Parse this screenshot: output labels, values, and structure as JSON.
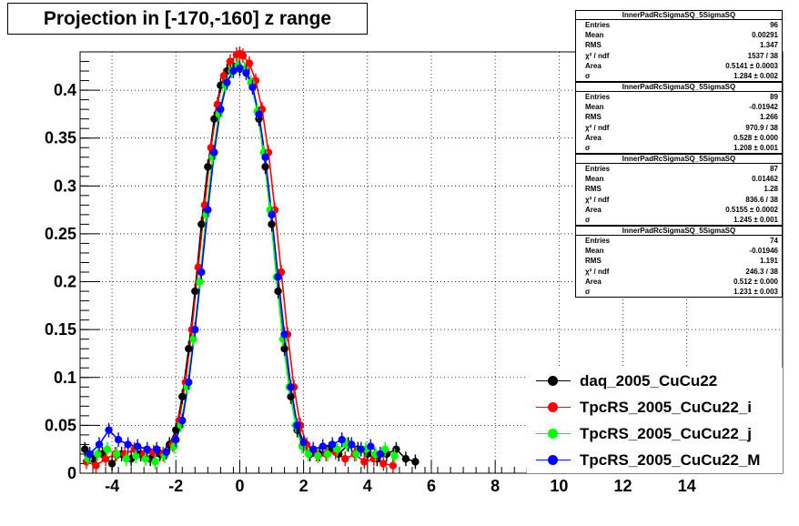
{
  "title": "Projection in [-170,-160] z range",
  "chart_data": {
    "type": "scatter",
    "xlim": [
      -5.0,
      17.0
    ],
    "ylim": [
      0,
      0.44
    ],
    "x_ticks": [
      -4,
      -2,
      0,
      2,
      4,
      6,
      8,
      10,
      12,
      14
    ],
    "y_ticks": [
      0,
      0.05,
      0.1,
      0.15,
      0.2,
      0.25,
      0.3,
      0.35,
      0.4
    ],
    "grid": true,
    "legend_position": "bottom-right",
    "series": [
      {
        "name": "daq_2005_CuCu22",
        "color": "#000000",
        "x": [
          -4.85,
          -4.6,
          -4.3,
          -4.0,
          -3.7,
          -3.4,
          -3.1,
          -2.8,
          -2.5,
          -2.2,
          -2.0,
          -1.8,
          -1.6,
          -1.4,
          -1.2,
          -1.0,
          -0.8,
          -0.6,
          -0.4,
          -0.2,
          0.0,
          0.2,
          0.4,
          0.6,
          0.8,
          1.0,
          1.2,
          1.4,
          1.6,
          1.8,
          2.0,
          2.2,
          2.5,
          2.8,
          3.1,
          3.4,
          3.7,
          4.0,
          4.3,
          4.6,
          4.9,
          5.2,
          5.5
        ],
        "y": [
          0.025,
          0.015,
          0.02,
          0.01,
          0.02,
          0.015,
          0.02,
          0.015,
          0.02,
          0.03,
          0.045,
          0.08,
          0.13,
          0.19,
          0.26,
          0.32,
          0.37,
          0.405,
          0.42,
          0.425,
          0.422,
          0.42,
          0.405,
          0.37,
          0.32,
          0.26,
          0.19,
          0.13,
          0.08,
          0.045,
          0.03,
          0.02,
          0.02,
          0.025,
          0.02,
          0.03,
          0.025,
          0.02,
          0.015,
          0.02,
          0.025,
          0.015,
          0.012
        ]
      },
      {
        "name": "TpcRS_2005_CuCu22_i",
        "color": "#ff0000",
        "x": [
          -4.8,
          -4.5,
          -4.2,
          -3.9,
          -3.6,
          -3.3,
          -3.0,
          -2.7,
          -2.4,
          -2.1,
          -1.9,
          -1.7,
          -1.5,
          -1.3,
          -1.1,
          -0.9,
          -0.7,
          -0.5,
          -0.3,
          -0.1,
          0.0,
          0.1,
          0.3,
          0.5,
          0.7,
          0.9,
          1.1,
          1.3,
          1.5,
          1.7,
          1.9,
          2.1,
          2.4,
          2.7,
          3.0,
          3.3,
          3.6,
          3.9,
          4.2,
          4.5,
          4.8
        ],
        "y": [
          0.012,
          0.008,
          0.015,
          0.02,
          0.02,
          0.025,
          0.02,
          0.022,
          0.02,
          0.03,
          0.055,
          0.095,
          0.15,
          0.215,
          0.28,
          0.34,
          0.385,
          0.415,
          0.43,
          0.437,
          0.438,
          0.436,
          0.428,
          0.41,
          0.38,
          0.335,
          0.275,
          0.21,
          0.145,
          0.09,
          0.05,
          0.03,
          0.02,
          0.02,
          0.022,
          0.015,
          0.02,
          0.012,
          0.015,
          0.01,
          0.008
        ]
      },
      {
        "name": "TpcRS_2005_CuCu22_j",
        "color": "#00ff00",
        "x": [
          -4.75,
          -4.45,
          -4.15,
          -3.85,
          -3.55,
          -3.25,
          -2.95,
          -2.65,
          -2.35,
          -2.05,
          -1.85,
          -1.65,
          -1.45,
          -1.25,
          -1.05,
          -0.85,
          -0.65,
          -0.45,
          -0.25,
          -0.05,
          0.15,
          0.35,
          0.55,
          0.75,
          0.95,
          1.15,
          1.35,
          1.55,
          1.75,
          1.95,
          2.15,
          2.45,
          2.75,
          3.05,
          3.35,
          3.65,
          3.95,
          4.25,
          4.55,
          4.85
        ],
        "y": [
          0.015,
          0.02,
          0.025,
          0.02,
          0.015,
          0.018,
          0.015,
          0.012,
          0.018,
          0.028,
          0.05,
          0.09,
          0.14,
          0.2,
          0.27,
          0.33,
          0.375,
          0.405,
          0.42,
          0.426,
          0.422,
          0.408,
          0.378,
          0.335,
          0.275,
          0.205,
          0.14,
          0.09,
          0.05,
          0.028,
          0.02,
          0.018,
          0.02,
          0.025,
          0.03,
          0.02,
          0.025,
          0.02,
          0.025,
          0.018
        ]
      },
      {
        "name": "TpcRS_2005_CuCu22_M",
        "color": "#0000ff",
        "x": [
          -4.7,
          -4.4,
          -4.1,
          -3.8,
          -3.5,
          -3.2,
          -2.9,
          -2.6,
          -2.3,
          -2.0,
          -1.8,
          -1.6,
          -1.4,
          -1.2,
          -1.0,
          -0.8,
          -0.6,
          -0.4,
          -0.2,
          0.0,
          0.2,
          0.4,
          0.6,
          0.8,
          1.0,
          1.2,
          1.4,
          1.6,
          1.8,
          2.0,
          2.3,
          2.6,
          2.9,
          3.2,
          3.5,
          3.8,
          4.1,
          4.4
        ],
        "y": [
          0.02,
          0.03,
          0.045,
          0.035,
          0.03,
          0.028,
          0.025,
          0.025,
          0.022,
          0.035,
          0.055,
          0.095,
          0.15,
          0.21,
          0.275,
          0.335,
          0.38,
          0.408,
          0.42,
          0.423,
          0.418,
          0.403,
          0.375,
          0.33,
          0.27,
          0.205,
          0.145,
          0.09,
          0.05,
          0.032,
          0.025,
          0.028,
          0.03,
          0.035,
          0.03,
          0.025,
          0.028,
          0.02
        ]
      }
    ]
  },
  "stats_boxes": [
    {
      "title": "InnerPadRcSigmaSQ_5SigmaSQ",
      "rows": [
        {
          "label": "Entries",
          "value": "96"
        },
        {
          "label": "Mean",
          "value": "0.00291"
        },
        {
          "label": "RMS",
          "value": "1.347"
        },
        {
          "label": "χ² / ndf",
          "value": "1537 / 38"
        },
        {
          "label": "Area",
          "value": "0.5141 ± 0.0003"
        },
        {
          "label": "σ",
          "value": "1.284 ± 0.002"
        }
      ]
    },
    {
      "title": "InnerPadRcSigmaSQ_5SigmaSQ",
      "rows": [
        {
          "label": "Entries",
          "value": "89"
        },
        {
          "label": "Mean",
          "value": "-0.01942"
        },
        {
          "label": "RMS",
          "value": "1.266"
        },
        {
          "label": "χ² / ndf",
          "value": "970.9 / 38"
        },
        {
          "label": "Area",
          "value": "0.528 ± 0.000"
        },
        {
          "label": "σ",
          "value": "1.208 ± 0.001"
        }
      ]
    },
    {
      "title": "InnerPadRcSigmaSQ_5SigmaSQ",
      "rows": [
        {
          "label": "Entries",
          "value": "87"
        },
        {
          "label": "Mean",
          "value": "0.01462"
        },
        {
          "label": "RMS",
          "value": "1.28"
        },
        {
          "label": "χ² / ndf",
          "value": "836.6 / 38"
        },
        {
          "label": "Area",
          "value": "0.5155 ± 0.0002"
        },
        {
          "label": "σ",
          "value": "1.245 ± 0.001"
        }
      ]
    },
    {
      "title": "InnerPadRcSigmaSQ_5SigmaSQ",
      "rows": [
        {
          "label": "Entries",
          "value": "74"
        },
        {
          "label": "Mean",
          "value": "-0.01946"
        },
        {
          "label": "RMS",
          "value": "1.191"
        },
        {
          "label": "χ² / ndf",
          "value": "246.3 / 38"
        },
        {
          "label": "Area",
          "value": "0.512 ± 0.000"
        },
        {
          "label": "σ",
          "value": "1.231 ± 0.003"
        }
      ]
    }
  ]
}
